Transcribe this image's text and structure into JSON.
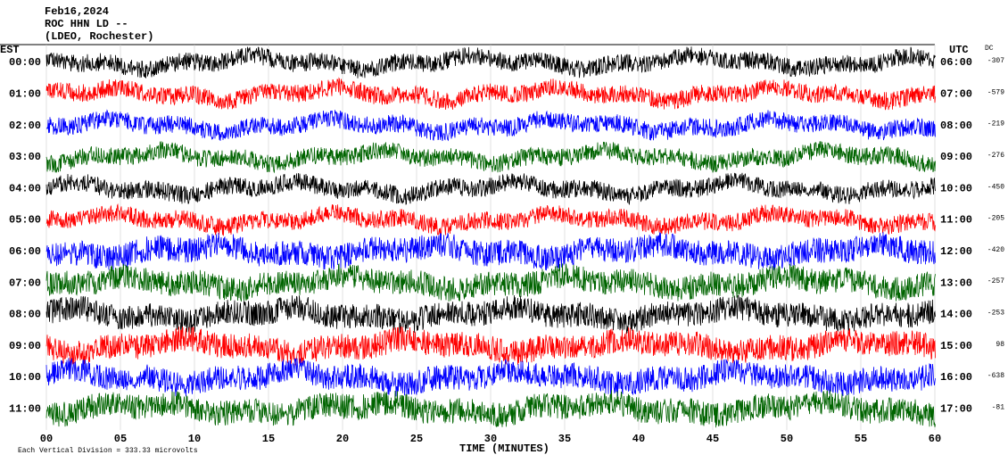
{
  "header": {
    "date": "Feb16,2024",
    "station": "ROC HHN LD --",
    "location": "(LDEO, Rochester)"
  },
  "left_label": "EST",
  "right_label": "UTC",
  "dc_label": "DC",
  "rows": [
    {
      "est": "00:00",
      "utc": "06:00",
      "dc": "-307",
      "color": "#000000"
    },
    {
      "est": "01:00",
      "utc": "07:00",
      "dc": "-579",
      "color": "#ff0000"
    },
    {
      "est": "02:00",
      "utc": "08:00",
      "dc": "-219",
      "color": "#0000ff"
    },
    {
      "est": "03:00",
      "utc": "09:00",
      "dc": "-276",
      "color": "#006400"
    },
    {
      "est": "04:00",
      "utc": "10:00",
      "dc": "-450",
      "color": "#000000"
    },
    {
      "est": "05:00",
      "utc": "11:00",
      "dc": "-205",
      "color": "#ff0000"
    },
    {
      "est": "06:00",
      "utc": "12:00",
      "dc": "-420",
      "color": "#0000ff"
    },
    {
      "est": "07:00",
      "utc": "13:00",
      "dc": "-257",
      "color": "#006400"
    },
    {
      "est": "08:00",
      "utc": "14:00",
      "dc": "-253",
      "color": "#000000"
    },
    {
      "est": "09:00",
      "utc": "15:00",
      "dc": "98",
      "color": "#ff0000"
    },
    {
      "est": "10:00",
      "utc": "16:00",
      "dc": "-638",
      "color": "#0000ff"
    },
    {
      "est": "11:00",
      "utc": "17:00",
      "dc": "-81",
      "color": "#006400"
    }
  ],
  "x_axis": {
    "ticks": [
      "00",
      "05",
      "10",
      "15",
      "20",
      "25",
      "30",
      "35",
      "40",
      "45",
      "50",
      "55",
      "60"
    ],
    "label": "TIME (MINUTES)"
  },
  "footer": "Each Vertical Division =  333.33 microvolts"
}
